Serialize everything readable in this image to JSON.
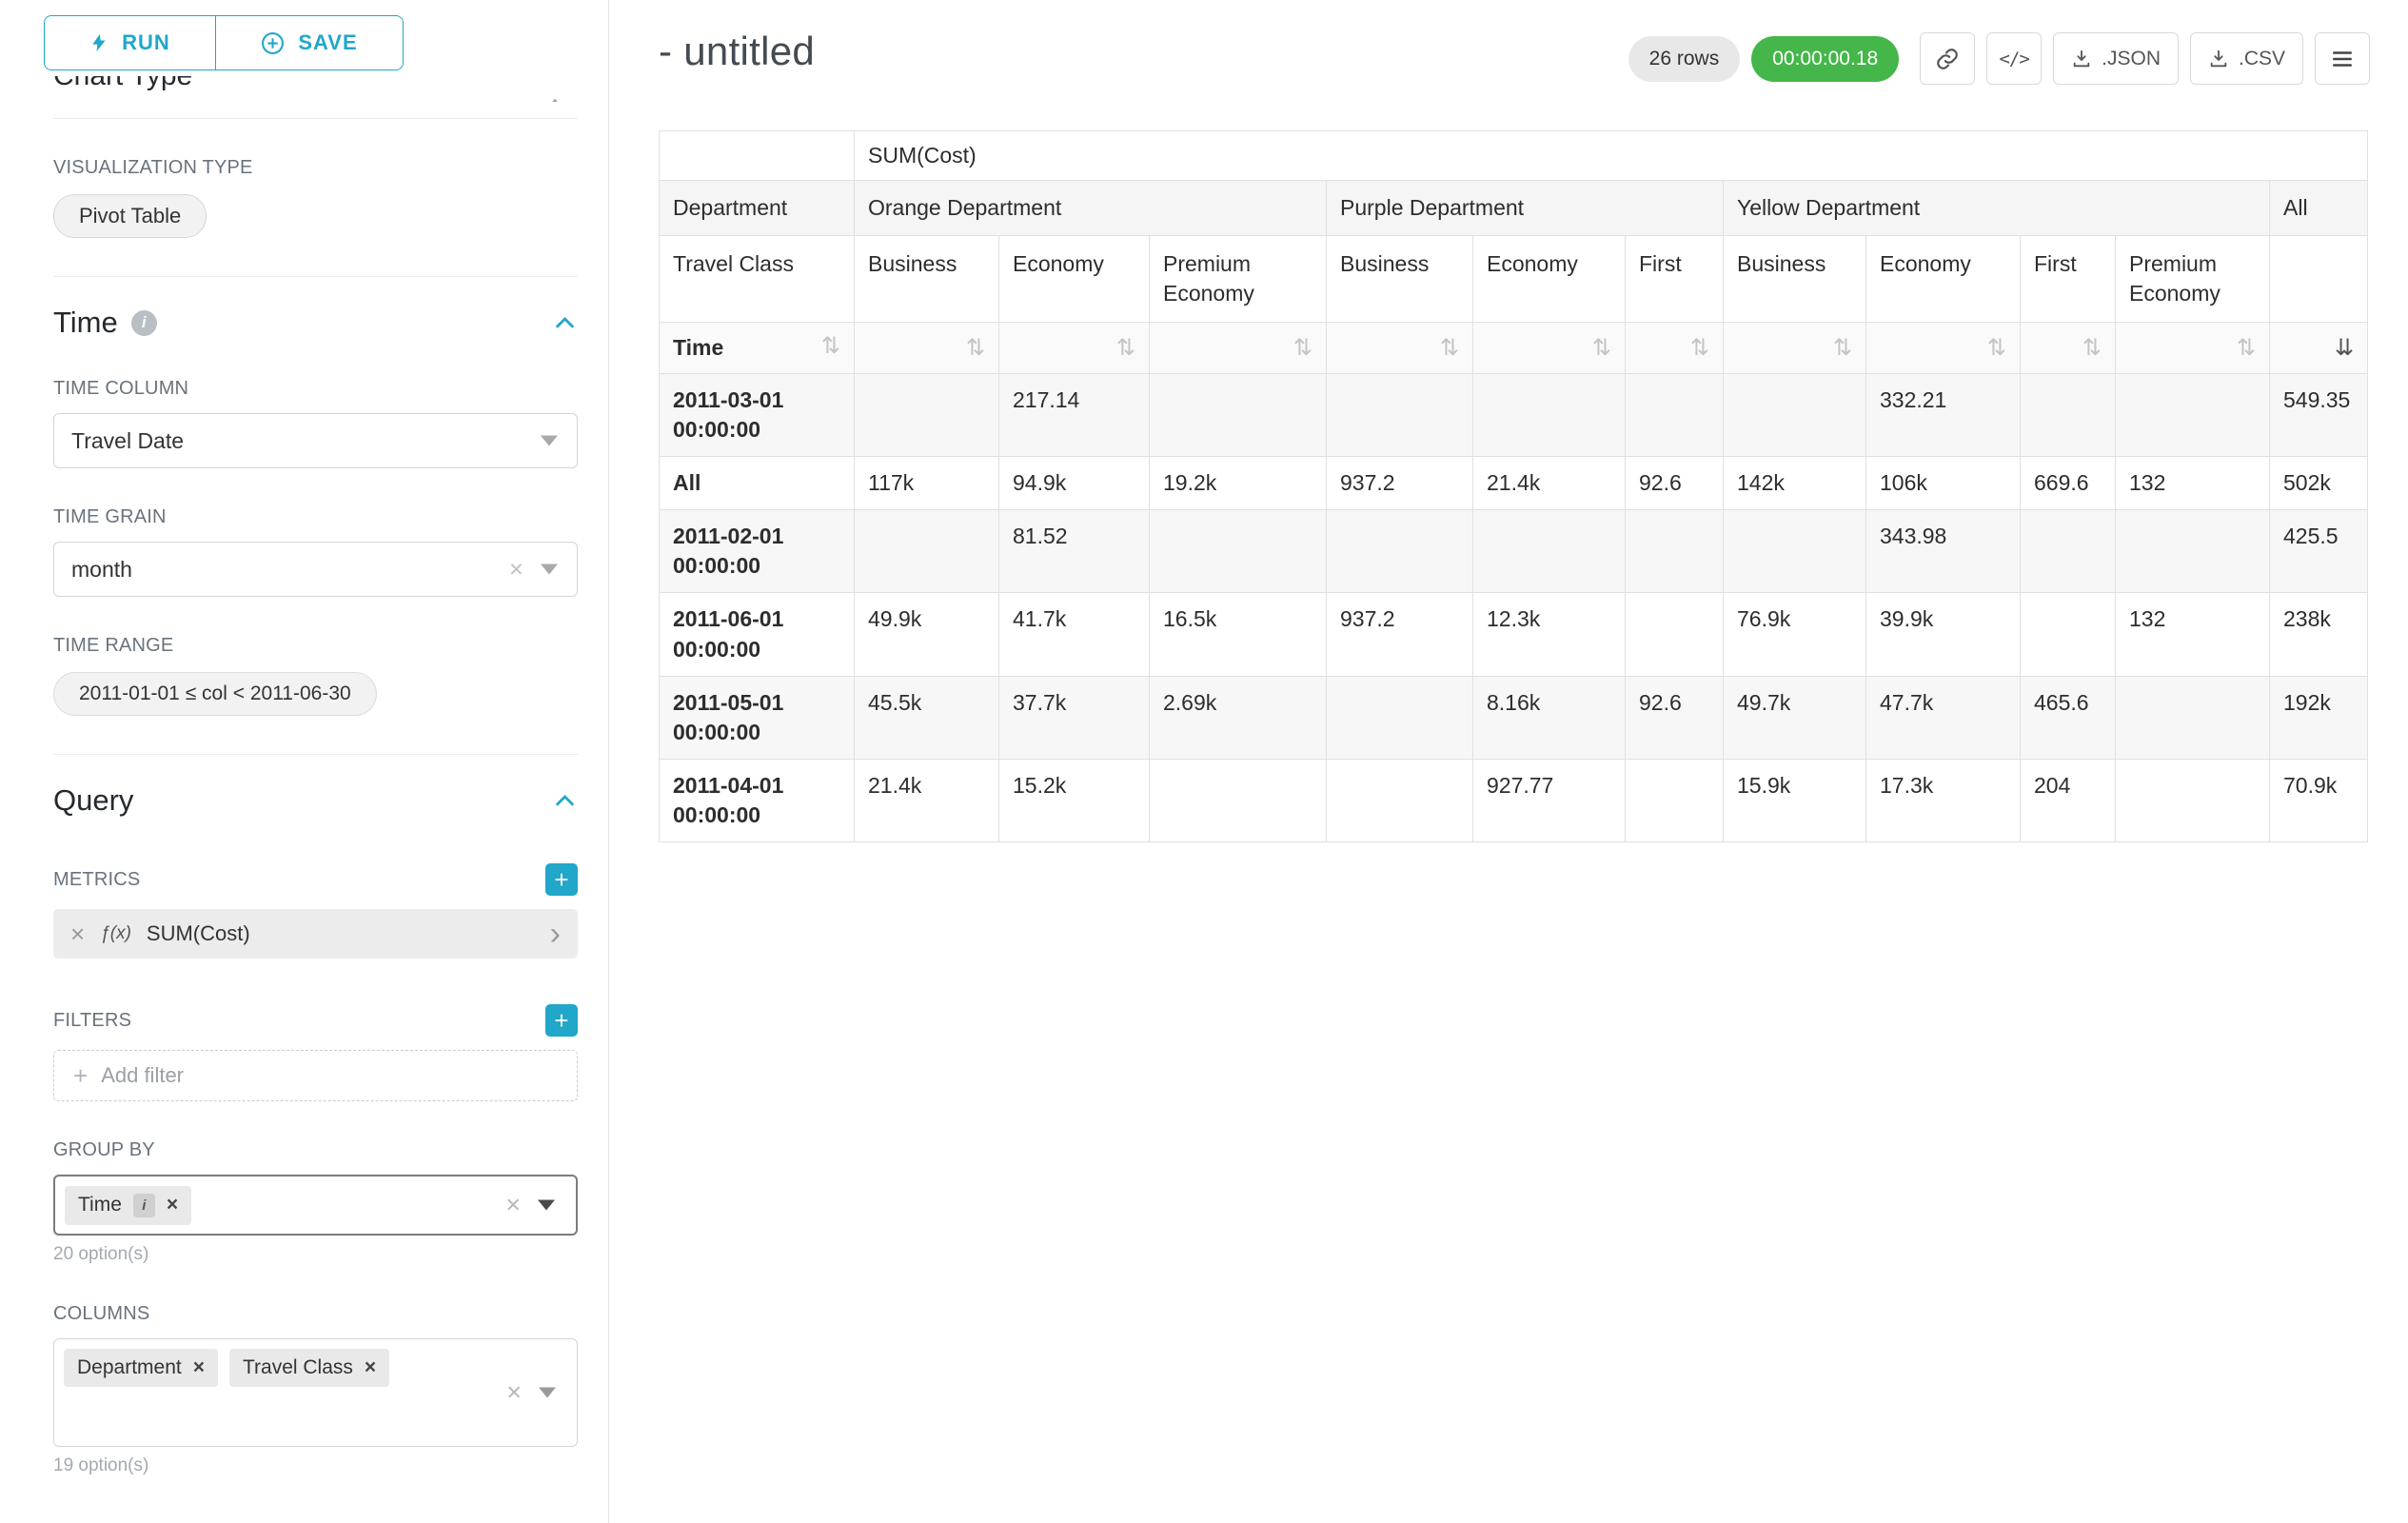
{
  "colors": {
    "primary": "#20a7c9",
    "timer_green": "#45b649",
    "badge_gray": "#e8e8e8"
  },
  "sidebar": {
    "run_label": "RUN",
    "save_label": "SAVE",
    "chart_type_heading": "Chart Type",
    "visualization_type_label": "VISUALIZATION TYPE",
    "visualization_type_value": "Pivot Table",
    "time": {
      "heading": "Time",
      "time_column_label": "TIME COLUMN",
      "time_column_value": "Travel Date",
      "time_grain_label": "TIME GRAIN",
      "time_grain_value": "month",
      "time_range_label": "TIME RANGE",
      "time_range_value": "2011-01-01 ≤ col < 2011-06-30"
    },
    "query": {
      "heading": "Query",
      "metrics_label": "METRICS",
      "metric_fx": "ƒ(x)",
      "metric_name": "SUM(Cost)",
      "filters_label": "FILTERS",
      "add_filter_label": "Add filter",
      "group_by_label": "GROUP BY",
      "group_by_chips": [
        {
          "label": "Time",
          "info": true
        }
      ],
      "group_by_hint": "20 option(s)",
      "columns_label": "COLUMNS",
      "columns_chips": [
        {
          "label": "Department"
        },
        {
          "label": "Travel Class"
        }
      ],
      "columns_hint": "19 option(s)"
    }
  },
  "header": {
    "title": "- untitled",
    "rows_badge": "26 rows",
    "timer_badge": "00:00:00.18",
    "json_label": ".JSON",
    "csv_label": ".CSV"
  },
  "icons": {
    "sort_inactive": "⇅",
    "sort_active_desc": "⇊"
  },
  "pivot": {
    "metric_header": "SUM(Cost)",
    "department_label": "Department",
    "travel_class_label": "Travel Class",
    "time_label": "Time",
    "all_label": "All",
    "groups": [
      {
        "name": "Orange Department",
        "classes": [
          "Business",
          "Economy",
          "Premium Economy"
        ]
      },
      {
        "name": "Purple Department",
        "classes": [
          "Business",
          "Economy",
          "First"
        ]
      },
      {
        "name": "Yellow Department",
        "classes": [
          "Business",
          "Economy",
          "First",
          "Premium Economy"
        ]
      }
    ],
    "rows": [
      {
        "label": "2011-03-01 00:00:00",
        "values": [
          "",
          "217.14",
          "",
          "",
          "",
          "",
          "",
          "332.21",
          "",
          "",
          "549.35"
        ]
      },
      {
        "label": "All",
        "values": [
          "117k",
          "94.9k",
          "19.2k",
          "937.2",
          "21.4k",
          "92.6",
          "142k",
          "106k",
          "669.6",
          "132",
          "502k"
        ]
      },
      {
        "label": "2011-02-01 00:00:00",
        "values": [
          "",
          "81.52",
          "",
          "",
          "",
          "",
          "",
          "343.98",
          "",
          "",
          "425.5"
        ]
      },
      {
        "label": "2011-06-01 00:00:00",
        "values": [
          "49.9k",
          "41.7k",
          "16.5k",
          "937.2",
          "12.3k",
          "",
          "76.9k",
          "39.9k",
          "",
          "132",
          "238k"
        ]
      },
      {
        "label": "2011-05-01 00:00:00",
        "values": [
          "45.5k",
          "37.7k",
          "2.69k",
          "",
          "8.16k",
          "92.6",
          "49.7k",
          "47.7k",
          "465.6",
          "",
          "192k"
        ]
      },
      {
        "label": "2011-04-01 00:00:00",
        "values": [
          "21.4k",
          "15.2k",
          "",
          "",
          "927.77",
          "",
          "15.9k",
          "17.3k",
          "204",
          "",
          "70.9k"
        ]
      }
    ]
  }
}
